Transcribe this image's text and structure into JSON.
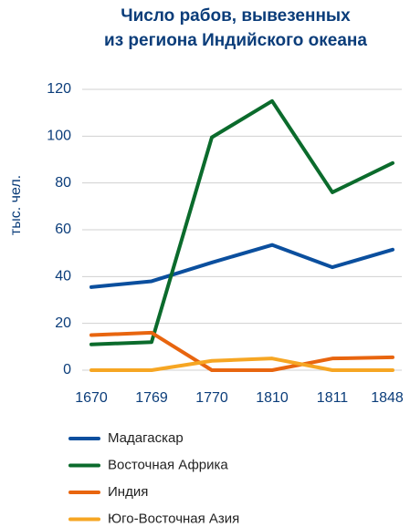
{
  "chart_data": {
    "type": "line",
    "title": [
      "Число рабов, вывезенных",
      "из региона Индийского океана"
    ],
    "y_label": "тыс. чел.",
    "categories": [
      "1670",
      "1769",
      "1770",
      "1810",
      "1811",
      "1848"
    ],
    "series": [
      {
        "name": "Мадагаскар",
        "color": "#0b4f9e",
        "values": [
          35.5,
          38,
          46,
          53.5,
          44,
          51.5
        ]
      },
      {
        "name": "Восточная Африка",
        "color": "#0b6b2c",
        "values": [
          11,
          12,
          99.5,
          115,
          76,
          88.5
        ]
      },
      {
        "name": "Индия",
        "color": "#e8650f",
        "values": [
          15,
          16,
          0,
          0,
          5,
          5.5
        ]
      },
      {
        "name": "Юго-Восточная Азия",
        "color": "#f6a623",
        "values": [
          0,
          0,
          4,
          5,
          0,
          0
        ]
      }
    ],
    "ylim": [
      0,
      120
    ],
    "yticks": [
      0,
      20,
      40,
      60,
      80,
      100,
      120
    ],
    "grid": true,
    "legend": "bottom"
  }
}
